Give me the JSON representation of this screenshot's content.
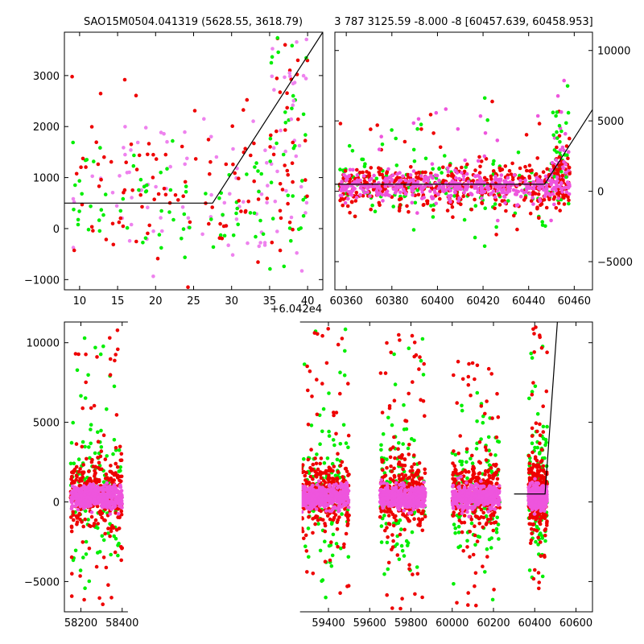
{
  "chart_data": [
    {
      "type": "scatter",
      "title": "SAO15M0504.041319 (5628.55, 3618.79)",
      "xlim": [
        8,
        42
      ],
      "ylim": [
        -1200,
        3850
      ],
      "x_offset_label": "+6.042e4",
      "x_ticks": [
        10,
        15,
        20,
        25,
        30,
        35,
        40
      ],
      "y_ticks": [
        -1000,
        0,
        1000,
        2000,
        3000
      ],
      "model_line": [
        [
          8,
          500
        ],
        [
          27.5,
          500
        ],
        [
          42,
          3850
        ]
      ],
      "series": [
        {
          "color": "#ee82ee",
          "x_range": [
            9,
            40
          ],
          "y_center": 800,
          "y_spread": 900,
          "n": 90
        },
        {
          "color": "#00ee00",
          "x_range": [
            9,
            40
          ],
          "y_center": 500,
          "y_spread": 700,
          "n": 90
        },
        {
          "color": "#ee0000",
          "x_range": [
            9,
            40
          ],
          "y_center": 800,
          "y_spread": 1000,
          "n": 110
        }
      ],
      "tail": {
        "x_range": [
          35,
          40
        ],
        "y_range": [
          1500,
          3800
        ]
      }
    },
    {
      "type": "scatter",
      "title": "3 787 3125.59 -8.000 -8 [60457.639, 60458.953]",
      "xlim": [
        60355,
        60468
      ],
      "ylim": [
        -7000,
        11300
      ],
      "x_ticks": [
        60360,
        60380,
        60400,
        60420,
        60440,
        60460
      ],
      "y_ticks": [
        -5000,
        0,
        5000,
        10000
      ],
      "y_axis_side": "right",
      "model_line": [
        [
          60355,
          500
        ],
        [
          60447,
          500
        ],
        [
          60468,
          5800
        ]
      ],
      "series": [
        {
          "color": "#00ee00",
          "x_range": [
            60357,
            60458
          ],
          "y_center": 300,
          "y_spread": 1800,
          "n": 160
        },
        {
          "color": "#ee0000",
          "x_range": [
            60357,
            60458
          ],
          "y_center": 300,
          "y_spread": 1200,
          "n": 450
        },
        {
          "color": "#ee55dd",
          "x_range": [
            60357,
            60458
          ],
          "y_center": 300,
          "y_spread": 700,
          "n": 450
        }
      ],
      "tail": {
        "x_range": [
          60450,
          60458
        ],
        "y_range": [
          1000,
          9000
        ]
      }
    },
    {
      "type": "scatter",
      "title": "",
      "xlim": [
        58120,
        60680
      ],
      "ylim": [
        -6900,
        11300
      ],
      "x_ticks": [
        58200,
        58400,
        59400,
        59600,
        59800,
        60000,
        60200,
        60400,
        60600
      ],
      "y_ticks": [
        -5000,
        0,
        5000,
        10000
      ],
      "axis_break": [
        58420,
        59270
      ],
      "model_line": [
        [
          60300,
          500
        ],
        [
          60450,
          500
        ],
        [
          60510,
          11300
        ]
      ],
      "seasons": [
        {
          "x_range": [
            58150,
            58400
          ],
          "hi": 11000,
          "lo": -6500
        },
        {
          "x_range": [
            59270,
            59500
          ],
          "hi": 11000,
          "lo": -6200
        },
        {
          "x_range": [
            59650,
            59870
          ],
          "hi": 11000,
          "lo": -6700
        },
        {
          "x_range": [
            60000,
            60230
          ],
          "hi": 9000,
          "lo": -6600
        },
        {
          "x_range": [
            60370,
            60460
          ],
          "hi": 11000,
          "lo": -5500
        }
      ],
      "series": [
        {
          "color": "#00ee00",
          "y_center": 800,
          "y_spread": 3200
        },
        {
          "color": "#ee0000",
          "y_center": 500,
          "y_spread": 1800
        },
        {
          "color": "#ee55dd",
          "y_center": 300,
          "y_spread": 600
        }
      ]
    }
  ]
}
